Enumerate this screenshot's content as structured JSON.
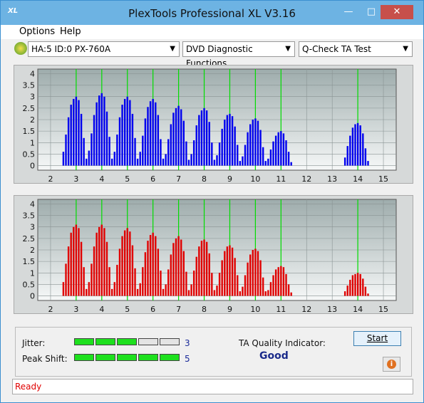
{
  "window": {
    "title": "PlexTools Professional XL V3.16"
  },
  "menu": [
    "Options",
    "Help"
  ],
  "toolbar": {
    "drive": "HA:5 ID:0  PX-760A",
    "function": "DVD Diagnostic Functions",
    "test": "Q-Check TA Test"
  },
  "chart_data": [
    {
      "type": "bar",
      "color": "#0000ee",
      "marker_color": "#00dd00",
      "x": [
        2.5,
        2.6,
        2.7,
        2.8,
        2.9,
        3,
        3.1,
        3.2,
        3.3,
        3.4,
        3.5,
        3.6,
        3.7,
        3.8,
        3.9,
        4,
        4.1,
        4.2,
        4.3,
        4.4,
        4.5,
        4.6,
        4.7,
        4.8,
        4.9,
        5,
        5.1,
        5.2,
        5.3,
        5.4,
        5.5,
        5.6,
        5.7,
        5.8,
        5.9,
        6,
        6.1,
        6.2,
        6.3,
        6.4,
        6.5,
        6.6,
        6.7,
        6.8,
        6.9,
        7,
        7.1,
        7.2,
        7.3,
        7.4,
        7.5,
        7.6,
        7.7,
        7.8,
        7.9,
        8,
        8.1,
        8.2,
        8.3,
        8.4,
        8.5,
        8.6,
        8.7,
        8.8,
        8.9,
        9,
        9.1,
        9.2,
        9.3,
        9.4,
        9.5,
        9.6,
        9.7,
        9.8,
        9.9,
        10,
        10.1,
        10.2,
        10.3,
        10.4,
        10.5,
        10.6,
        10.7,
        10.8,
        10.9,
        11,
        11.1,
        11.2,
        11.3,
        11.4,
        13.5,
        13.6,
        13.7,
        13.8,
        13.9,
        14,
        14.1,
        14.2,
        14.3,
        14.4
      ],
      "values": [
        0.6,
        1.35,
        2.1,
        2.65,
        2.9,
        3,
        2.85,
        2.25,
        1.2,
        0.3,
        0.65,
        1.4,
        2.2,
        2.75,
        3.05,
        3.15,
        3,
        2.35,
        1.25,
        0.3,
        0.6,
        1.35,
        2.1,
        2.65,
        2.9,
        3,
        2.85,
        2.25,
        1.2,
        0.3,
        0.6,
        1.3,
        2.05,
        2.55,
        2.8,
        2.9,
        2.75,
        2.2,
        1.15,
        0.3,
        0.5,
        1.15,
        1.8,
        2.3,
        2.5,
        2.6,
        2.45,
        1.95,
        1.05,
        0.25,
        0.5,
        1.1,
        1.75,
        2.2,
        2.4,
        2.5,
        2.4,
        1.9,
        1,
        0.25,
        0.45,
        1,
        1.6,
        2,
        2.2,
        2.25,
        2.15,
        1.7,
        0.9,
        0.2,
        0.4,
        0.9,
        1.45,
        1.8,
        2,
        2.05,
        1.95,
        1.55,
        0.8,
        0.2,
        0.3,
        0.7,
        1.05,
        1.3,
        1.45,
        1.5,
        1.4,
        1.1,
        0.6,
        0.15,
        0.35,
        0.85,
        1.3,
        1.65,
        1.8,
        1.85,
        1.75,
        1.4,
        0.75,
        0.2
      ],
      "markers": [
        3,
        4,
        5,
        6,
        7,
        8,
        9,
        10,
        11,
        14
      ],
      "xlim": [
        1.5,
        15.5
      ],
      "ylim": [
        -0.2,
        4.2
      ],
      "xticks": [
        2,
        3,
        4,
        5,
        6,
        7,
        8,
        9,
        10,
        11,
        12,
        13,
        14,
        15
      ],
      "yticks": [
        0,
        0.5,
        1,
        1.5,
        2,
        2.5,
        3,
        3.5,
        4
      ],
      "grid": true
    },
    {
      "type": "bar",
      "color": "#e00000",
      "marker_color": "#00dd00",
      "x": [
        2.5,
        2.6,
        2.7,
        2.8,
        2.9,
        3,
        3.1,
        3.2,
        3.3,
        3.4,
        3.5,
        3.6,
        3.7,
        3.8,
        3.9,
        4,
        4.1,
        4.2,
        4.3,
        4.4,
        4.5,
        4.6,
        4.7,
        4.8,
        4.9,
        5,
        5.1,
        5.2,
        5.3,
        5.4,
        5.5,
        5.6,
        5.7,
        5.8,
        5.9,
        6,
        6.1,
        6.2,
        6.3,
        6.4,
        6.5,
        6.6,
        6.7,
        6.8,
        6.9,
        7,
        7.1,
        7.2,
        7.3,
        7.4,
        7.5,
        7.6,
        7.7,
        7.8,
        7.9,
        8,
        8.1,
        8.2,
        8.3,
        8.4,
        8.5,
        8.6,
        8.7,
        8.8,
        8.9,
        9,
        9.1,
        9.2,
        9.3,
        9.4,
        9.5,
        9.6,
        9.7,
        9.8,
        9.9,
        10,
        10.1,
        10.2,
        10.3,
        10.4,
        10.5,
        10.6,
        10.7,
        10.8,
        10.9,
        11,
        11.1,
        11.2,
        11.3,
        11.4,
        13.5,
        13.6,
        13.7,
        13.8,
        13.9,
        14,
        14.1,
        14.2,
        14.3,
        14.4
      ],
      "values": [
        0.6,
        1.4,
        2.15,
        2.75,
        3,
        3.1,
        2.95,
        2.35,
        1.25,
        0.3,
        0.6,
        1.4,
        2.15,
        2.75,
        3,
        3.1,
        2.95,
        2.35,
        1.25,
        0.3,
        0.6,
        1.35,
        2.05,
        2.6,
        2.85,
        2.95,
        2.8,
        2.2,
        1.2,
        0.3,
        0.55,
        1.25,
        1.9,
        2.4,
        2.65,
        2.75,
        2.6,
        2.05,
        1.1,
        0.3,
        0.5,
        1.15,
        1.8,
        2.3,
        2.5,
        2.6,
        2.45,
        1.95,
        1.05,
        0.25,
        0.5,
        1.1,
        1.7,
        2.15,
        2.4,
        2.45,
        2.35,
        1.85,
        1,
        0.25,
        0.45,
        1,
        1.55,
        1.95,
        2.15,
        2.2,
        2.1,
        1.65,
        0.9,
        0.2,
        0.4,
        0.9,
        1.45,
        1.8,
        2,
        2.05,
        1.95,
        1.55,
        0.8,
        0.2,
        0.25,
        0.6,
        0.9,
        1.15,
        1.25,
        1.3,
        1.25,
        0.95,
        0.5,
        0.15,
        0.2,
        0.45,
        0.7,
        0.9,
        0.95,
        1,
        0.95,
        0.75,
        0.4,
        0.1
      ],
      "markers": [
        3,
        4,
        5,
        6,
        7,
        8,
        9,
        10,
        11,
        14
      ],
      "xlim": [
        1.5,
        15.5
      ],
      "ylim": [
        -0.2,
        4.2
      ],
      "xticks": [
        2,
        3,
        4,
        5,
        6,
        7,
        8,
        9,
        10,
        11,
        12,
        13,
        14,
        15
      ],
      "yticks": [
        0,
        0.5,
        1,
        1.5,
        2,
        2.5,
        3,
        3.5,
        4
      ],
      "grid": true
    }
  ],
  "results": {
    "jitter_label": "Jitter:",
    "jitter": 3,
    "peak_shift_label": "Peak Shift:",
    "peak_shift": 5,
    "quality_label": "TA Quality Indicator:",
    "quality": "Good",
    "start": "Start"
  },
  "status": "Ready"
}
